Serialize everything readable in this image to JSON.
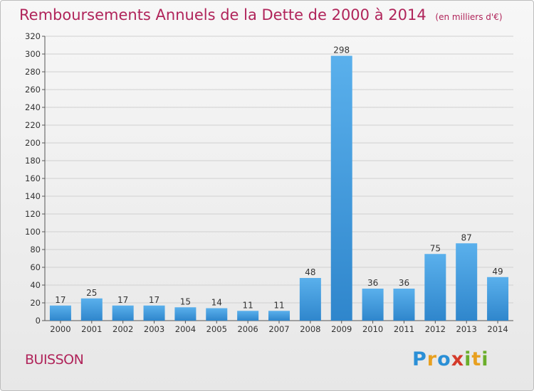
{
  "header": {
    "title": "Remboursements Annuels de la Dette de 2000 à 2014",
    "subtitle": "(en milliers d'€)"
  },
  "footer": {
    "place": "BUISSON",
    "logo_letters": [
      {
        "ch": "P",
        "color": "#2a8fd6"
      },
      {
        "ch": "r",
        "color": "#e8a020"
      },
      {
        "ch": "o",
        "color": "#2a8fd6"
      },
      {
        "ch": "x",
        "color": "#d43a2a"
      },
      {
        "ch": "i",
        "color": "#6aae2a"
      },
      {
        "ch": "t",
        "color": "#e8a020"
      },
      {
        "ch": "i",
        "color": "#6aae2a"
      }
    ]
  },
  "colors": {
    "bar_top": "#5ab0ec",
    "bar_bottom": "#2f86cc",
    "grid": "#d0d0d0",
    "title": "#b0245a"
  },
  "chart_data": {
    "type": "bar",
    "categories": [
      "2000",
      "2001",
      "2002",
      "2003",
      "2004",
      "2005",
      "2006",
      "2007",
      "2008",
      "2009",
      "2010",
      "2011",
      "2012",
      "2013",
      "2014"
    ],
    "values": [
      17,
      25,
      17,
      17,
      15,
      14,
      11,
      11,
      48,
      298,
      36,
      36,
      75,
      87,
      49
    ],
    "ylim": [
      0,
      320
    ],
    "yticks": [
      0,
      20,
      40,
      60,
      80,
      100,
      120,
      140,
      160,
      180,
      200,
      220,
      240,
      260,
      280,
      300,
      320
    ],
    "grid": true,
    "data_labels": true
  }
}
